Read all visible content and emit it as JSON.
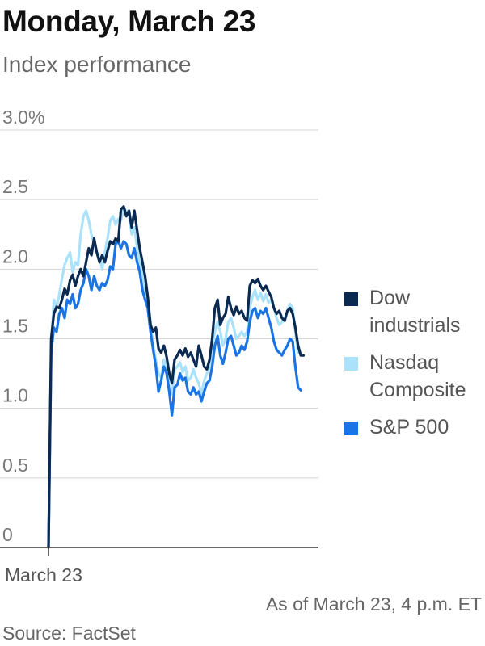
{
  "header": {
    "title": "Monday, March 23",
    "subtitle": "Index performance"
  },
  "footer": {
    "note": "As of March 23, 4 p.m. ET",
    "source": "Source: FactSet"
  },
  "chart_data": {
    "type": "line",
    "title": "Monday, March 23",
    "subtitle": "Index performance",
    "xlabel": "",
    "ylabel": "",
    "xlim": [
      0,
      100
    ],
    "ylim": [
      0,
      3.0
    ],
    "yticks": [
      0,
      0.5,
      1.0,
      1.5,
      2.0,
      2.5,
      3.0
    ],
    "ytick_labels": [
      "0",
      "0.5",
      "1.0",
      "1.5",
      "2.0",
      "2.5",
      "3.0%"
    ],
    "xticks": [
      {
        "value": 0,
        "label": "March 23"
      }
    ],
    "grid": true,
    "legend_position": "right",
    "series": [
      {
        "name": "Dow industrials",
        "label_lines": [
          "Dow",
          "industrials"
        ],
        "color": "#0b2a52",
        "points": [
          [
            0,
            0
          ],
          [
            1,
            1.5
          ],
          [
            2,
            1.68
          ],
          [
            3,
            1.73
          ],
          [
            4,
            1.72
          ],
          [
            5,
            1.78
          ],
          [
            6,
            1.86
          ],
          [
            7,
            1.82
          ],
          [
            8,
            1.92
          ],
          [
            9,
            1.96
          ],
          [
            10,
            1.88
          ],
          [
            11,
            1.95
          ],
          [
            12,
            2.0
          ],
          [
            13,
            1.95
          ],
          [
            14,
            2.05
          ],
          [
            15,
            2.15
          ],
          [
            16,
            2.1
          ],
          [
            17,
            2.22
          ],
          [
            18,
            2.12
          ],
          [
            19,
            2.05
          ],
          [
            20,
            2.1
          ],
          [
            21,
            2.05
          ],
          [
            22,
            2.13
          ],
          [
            23,
            2.2
          ],
          [
            24,
            2.18
          ],
          [
            25,
            2.22
          ],
          [
            26,
            2.2
          ],
          [
            27,
            2.43
          ],
          [
            28,
            2.45
          ],
          [
            29,
            2.38
          ],
          [
            30,
            2.42
          ],
          [
            31,
            2.3
          ],
          [
            32,
            2.42
          ],
          [
            33,
            2.28
          ],
          [
            34,
            2.15
          ],
          [
            35,
            2.05
          ],
          [
            36,
            1.95
          ],
          [
            37,
            1.8
          ],
          [
            38,
            1.6
          ],
          [
            39,
            1.55
          ],
          [
            40,
            1.58
          ],
          [
            41,
            1.43
          ],
          [
            42,
            1.4
          ],
          [
            43,
            1.45
          ],
          [
            44,
            1.37
          ],
          [
            45,
            1.25
          ],
          [
            46,
            1.18
          ],
          [
            47,
            1.35
          ],
          [
            48,
            1.38
          ],
          [
            49,
            1.42
          ],
          [
            50,
            1.38
          ],
          [
            51,
            1.43
          ],
          [
            52,
            1.37
          ],
          [
            53,
            1.4
          ],
          [
            54,
            1.35
          ],
          [
            55,
            1.3
          ],
          [
            56,
            1.45
          ],
          [
            57,
            1.38
          ],
          [
            58,
            1.3
          ],
          [
            59,
            1.28
          ],
          [
            60,
            1.35
          ],
          [
            61,
            1.5
          ],
          [
            62,
            1.72
          ],
          [
            63,
            1.78
          ],
          [
            64,
            1.6
          ],
          [
            65,
            1.65
          ],
          [
            66,
            1.68
          ],
          [
            67,
            1.8
          ],
          [
            68,
            1.72
          ],
          [
            69,
            1.67
          ],
          [
            70,
            1.73
          ],
          [
            71,
            1.68
          ],
          [
            72,
            1.7
          ],
          [
            73,
            1.65
          ],
          [
            74,
            1.63
          ],
          [
            75,
            1.88
          ],
          [
            76,
            1.92
          ],
          [
            77,
            1.9
          ],
          [
            78,
            1.93
          ],
          [
            79,
            1.88
          ],
          [
            80,
            1.85
          ],
          [
            81,
            1.88
          ],
          [
            82,
            1.84
          ],
          [
            83,
            1.8
          ],
          [
            84,
            1.72
          ],
          [
            85,
            1.68
          ],
          [
            86,
            1.7
          ],
          [
            87,
            1.65
          ],
          [
            88,
            1.63
          ],
          [
            89,
            1.7
          ],
          [
            90,
            1.72
          ],
          [
            91,
            1.68
          ],
          [
            92,
            1.58
          ],
          [
            93,
            1.45
          ],
          [
            94,
            1.38
          ],
          [
            95,
            1.38
          ]
        ]
      },
      {
        "name": "Nasdaq Composite",
        "label_lines": [
          "Nasdaq",
          "Composite"
        ],
        "color": "#a9e2fa",
        "points": [
          [
            0,
            0
          ],
          [
            1,
            1.42
          ],
          [
            2,
            1.78
          ],
          [
            3,
            1.73
          ],
          [
            4,
            1.82
          ],
          [
            5,
            1.93
          ],
          [
            6,
            2.03
          ],
          [
            7,
            2.08
          ],
          [
            8,
            2.12
          ],
          [
            9,
            1.98
          ],
          [
            10,
            2.05
          ],
          [
            11,
            2.03
          ],
          [
            12,
            2.25
          ],
          [
            13,
            2.38
          ],
          [
            14,
            2.42
          ],
          [
            15,
            2.35
          ],
          [
            16,
            2.25
          ],
          [
            17,
            2.18
          ],
          [
            18,
            2.12
          ],
          [
            19,
            2.08
          ],
          [
            20,
            2.0
          ],
          [
            21,
            2.12
          ],
          [
            22,
            2.22
          ],
          [
            23,
            2.35
          ],
          [
            24,
            2.38
          ],
          [
            25,
            2.32
          ],
          [
            26,
            2.36
          ],
          [
            27,
            2.35
          ],
          [
            28,
            2.44
          ],
          [
            29,
            2.42
          ],
          [
            30,
            2.38
          ],
          [
            31,
            2.25
          ],
          [
            32,
            2.3
          ],
          [
            33,
            2.15
          ],
          [
            34,
            2.05
          ],
          [
            35,
            1.98
          ],
          [
            36,
            1.85
          ],
          [
            37,
            1.75
          ],
          [
            38,
            1.62
          ],
          [
            39,
            1.45
          ],
          [
            40,
            1.35
          ],
          [
            41,
            1.25
          ],
          [
            42,
            1.22
          ],
          [
            43,
            1.35
          ],
          [
            44,
            1.3
          ],
          [
            45,
            1.15
          ],
          [
            46,
            1.1
          ],
          [
            47,
            1.28
          ],
          [
            48,
            1.3
          ],
          [
            49,
            1.33
          ],
          [
            50,
            1.26
          ],
          [
            51,
            1.3
          ],
          [
            52,
            1.2
          ],
          [
            53,
            1.22
          ],
          [
            54,
            1.28
          ],
          [
            55,
            1.22
          ],
          [
            56,
            1.18
          ],
          [
            57,
            1.1
          ],
          [
            58,
            1.2
          ],
          [
            59,
            1.25
          ],
          [
            60,
            1.3
          ],
          [
            61,
            1.45
          ],
          [
            62,
            1.55
          ],
          [
            63,
            1.62
          ],
          [
            64,
            1.55
          ],
          [
            65,
            1.45
          ],
          [
            66,
            1.5
          ],
          [
            67,
            1.62
          ],
          [
            68,
            1.65
          ],
          [
            69,
            1.58
          ],
          [
            70,
            1.5
          ],
          [
            71,
            1.52
          ],
          [
            72,
            1.55
          ],
          [
            73,
            1.52
          ],
          [
            74,
            1.55
          ],
          [
            75,
            1.72
          ],
          [
            76,
            1.8
          ],
          [
            77,
            1.85
          ],
          [
            78,
            1.78
          ],
          [
            79,
            1.83
          ],
          [
            80,
            1.77
          ],
          [
            81,
            1.82
          ],
          [
            82,
            1.76
          ],
          [
            83,
            1.78
          ],
          [
            84,
            1.72
          ],
          [
            85,
            1.65
          ],
          [
            86,
            1.6
          ],
          [
            87,
            1.62
          ],
          [
            88,
            1.65
          ],
          [
            89,
            1.7
          ],
          [
            90,
            1.75
          ],
          [
            91,
            1.72
          ],
          [
            92,
            1.55
          ],
          [
            93,
            1.4
          ]
        ]
      },
      {
        "name": "S&P 500",
        "label_lines": [
          "S&P 500"
        ],
        "color": "#1b74e4",
        "points": [
          [
            0,
            0
          ],
          [
            1,
            1.4
          ],
          [
            2,
            1.58
          ],
          [
            3,
            1.55
          ],
          [
            4,
            1.68
          ],
          [
            5,
            1.72
          ],
          [
            6,
            1.65
          ],
          [
            7,
            1.78
          ],
          [
            8,
            1.75
          ],
          [
            9,
            1.82
          ],
          [
            10,
            1.72
          ],
          [
            11,
            1.75
          ],
          [
            12,
            1.85
          ],
          [
            13,
            1.9
          ],
          [
            14,
            2.0
          ],
          [
            15,
            1.95
          ],
          [
            16,
            1.85
          ],
          [
            17,
            1.95
          ],
          [
            18,
            1.88
          ],
          [
            19,
            1.85
          ],
          [
            20,
            1.9
          ],
          [
            21,
            1.88
          ],
          [
            22,
            1.92
          ],
          [
            23,
            2.02
          ],
          [
            24,
            2.0
          ],
          [
            25,
            2.18
          ],
          [
            26,
            2.2
          ],
          [
            27,
            2.15
          ],
          [
            28,
            2.2
          ],
          [
            29,
            2.18
          ],
          [
            30,
            2.1
          ],
          [
            31,
            2.08
          ],
          [
            32,
            2.15
          ],
          [
            33,
            2.05
          ],
          [
            34,
            1.98
          ],
          [
            35,
            1.85
          ],
          [
            36,
            1.78
          ],
          [
            37,
            1.72
          ],
          [
            38,
            1.55
          ],
          [
            39,
            1.42
          ],
          [
            40,
            1.3
          ],
          [
            41,
            1.12
          ],
          [
            42,
            1.2
          ],
          [
            43,
            1.3
          ],
          [
            44,
            1.25
          ],
          [
            45,
            1.12
          ],
          [
            46,
            0.95
          ],
          [
            47,
            1.15
          ],
          [
            48,
            1.17
          ],
          [
            49,
            1.25
          ],
          [
            50,
            1.2
          ],
          [
            51,
            1.22
          ],
          [
            52,
            1.12
          ],
          [
            53,
            1.1
          ],
          [
            54,
            1.15
          ],
          [
            55,
            1.1
          ],
          [
            56,
            1.12
          ],
          [
            57,
            1.05
          ],
          [
            58,
            1.12
          ],
          [
            59,
            1.18
          ],
          [
            60,
            1.2
          ],
          [
            61,
            1.3
          ],
          [
            62,
            1.45
          ],
          [
            63,
            1.52
          ],
          [
            64,
            1.38
          ],
          [
            65,
            1.32
          ],
          [
            66,
            1.4
          ],
          [
            67,
            1.5
          ],
          [
            68,
            1.52
          ],
          [
            69,
            1.45
          ],
          [
            70,
            1.38
          ],
          [
            71,
            1.4
          ],
          [
            72,
            1.45
          ],
          [
            73,
            1.42
          ],
          [
            74,
            1.48
          ],
          [
            75,
            1.62
          ],
          [
            76,
            1.7
          ],
          [
            77,
            1.72
          ],
          [
            78,
            1.65
          ],
          [
            79,
            1.7
          ],
          [
            80,
            1.68
          ],
          [
            81,
            1.72
          ],
          [
            82,
            1.65
          ],
          [
            83,
            1.58
          ],
          [
            84,
            1.48
          ],
          [
            85,
            1.42
          ],
          [
            86,
            1.4
          ],
          [
            87,
            1.38
          ],
          [
            88,
            1.42
          ],
          [
            89,
            1.45
          ],
          [
            90,
            1.5
          ],
          [
            91,
            1.48
          ],
          [
            92,
            1.3
          ],
          [
            93,
            1.15
          ],
          [
            94,
            1.13
          ]
        ]
      }
    ]
  }
}
